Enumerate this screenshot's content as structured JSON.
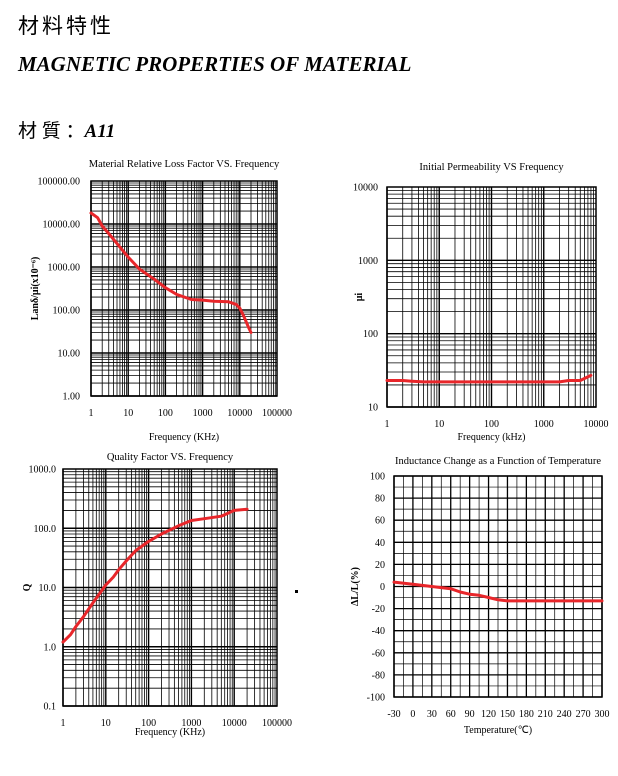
{
  "header": {
    "title_cn": "材料特性",
    "title_en": "MAGNETIC PROPERTIES OF MATERIAL",
    "material_label": "材 質 ：",
    "material_value": "A11"
  },
  "colors": {
    "series": "#e8262a",
    "grid": "#000000"
  },
  "chart_data": [
    {
      "type": "line",
      "title": "Material Relative Loss Factor VS. Frequency",
      "xlabel": "Frequency (KHz)",
      "ylabel": "Lanδ/μi(x10⁻⁶)",
      "x_scale": "log",
      "y_scale": "log",
      "xlim": [
        1,
        100000
      ],
      "ylim": [
        1,
        100000
      ],
      "x_ticks": [
        "1",
        "10",
        "100",
        "1000",
        "10000",
        "100000"
      ],
      "y_ticks": [
        "1.00",
        "10.00",
        "100.00",
        "1000.00",
        "10000.00",
        "100000.00"
      ],
      "grid": true,
      "series": [
        {
          "x": [
            1,
            1.5,
            2,
            3,
            5,
            10,
            20,
            50,
            100,
            200,
            500,
            1000,
            2000,
            5000,
            8000,
            10000,
            13000,
            17000,
            20000
          ],
          "y": [
            18000,
            14000,
            9000,
            6000,
            3500,
            1700,
            900,
            520,
            330,
            230,
            175,
            170,
            160,
            155,
            135,
            110,
            70,
            40,
            30
          ]
        }
      ]
    },
    {
      "type": "line",
      "title": "Initial Permeability VS Frequency",
      "xlabel": "Frequency (kHz)",
      "ylabel": "μi",
      "x_scale": "log",
      "y_scale": "log",
      "xlim": [
        1,
        10000
      ],
      "ylim": [
        10,
        10000
      ],
      "x_ticks": [
        "1",
        "10",
        "100",
        "1000",
        "10000"
      ],
      "y_ticks": [
        "10",
        "100",
        "1000",
        "10000"
      ],
      "grid": true,
      "series": [
        {
          "x": [
            1,
            2,
            3,
            5,
            10,
            50,
            100,
            500,
            1000,
            2000,
            3000,
            5000,
            8000
          ],
          "y": [
            23,
            23,
            22.5,
            22,
            22,
            22,
            22,
            22,
            22,
            22,
            23,
            23,
            27
          ]
        }
      ]
    },
    {
      "type": "line",
      "title": "Quality Factor  VS. Frequency",
      "xlabel": "Frequency (KHz)",
      "ylabel": "Q",
      "x_scale": "log",
      "y_scale": "log",
      "xlim": [
        1,
        100000
      ],
      "ylim": [
        0.1,
        1000
      ],
      "x_ticks": [
        "1",
        "10",
        "100",
        "1000",
        "10000",
        "100000"
      ],
      "y_ticks": [
        "0.1",
        "1.0",
        "10.0",
        "100.0",
        "1000.0"
      ],
      "grid": true,
      "series": [
        {
          "x": [
            1,
            1.5,
            2,
            3,
            5,
            10,
            15,
            20,
            30,
            50,
            100,
            200,
            500,
            1000,
            2000,
            5000,
            10000,
            20000
          ],
          "y": [
            1.2,
            1.6,
            2.2,
            3.2,
            5.5,
            11,
            15,
            20,
            28,
            42,
            60,
            80,
            110,
            135,
            145,
            160,
            200,
            210
          ]
        }
      ]
    },
    {
      "type": "line",
      "title": "Inductance Change as a Function of Temperature",
      "xlabel": "Temperature(℃)",
      "ylabel": "ΔL/L(%)",
      "x_scale": "linear",
      "y_scale": "linear",
      "xlim": [
        -30,
        300
      ],
      "ylim": [
        -100,
        100
      ],
      "x_ticks": [
        "-30",
        "0",
        "30",
        "60",
        "90",
        "120",
        "150",
        "180",
        "210",
        "240",
        "270",
        "300"
      ],
      "y_ticks": [
        "100",
        "80",
        "60",
        "40",
        "20",
        "0",
        "-20",
        "-40",
        "-60",
        "-80",
        "-100"
      ],
      "grid": true,
      "series": [
        {
          "x": [
            -30,
            0,
            30,
            60,
            75,
            90,
            105,
            120,
            135,
            150,
            180,
            210,
            240,
            270,
            300
          ],
          "y": [
            4,
            2,
            0,
            -2,
            -5,
            -7,
            -8,
            -10,
            -12,
            -13,
            -13,
            -13,
            -13,
            -13,
            -13
          ]
        }
      ]
    }
  ]
}
